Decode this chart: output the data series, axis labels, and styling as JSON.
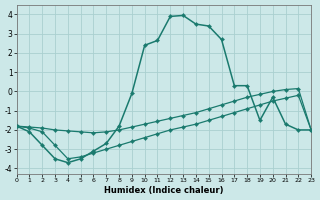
{
  "xlabel": "Humidex (Indice chaleur)",
  "bg_color": "#cce8e8",
  "grid_color": "#aad0d0",
  "line_color": "#1a7a6e",
  "xlim": [
    0,
    23
  ],
  "ylim": [
    -4.3,
    4.5
  ],
  "yticks": [
    -4,
    -3,
    -2,
    -1,
    0,
    1,
    2,
    3,
    4
  ],
  "xticks": [
    0,
    1,
    2,
    3,
    4,
    5,
    6,
    7,
    8,
    9,
    10,
    11,
    12,
    13,
    14,
    15,
    16,
    17,
    18,
    19,
    20,
    21,
    22,
    23
  ],
  "line1_x": [
    0,
    1,
    2,
    3,
    4,
    5,
    6,
    7,
    8,
    9,
    10,
    11,
    12,
    13,
    14,
    15,
    16,
    17,
    18,
    19,
    20,
    21,
    22,
    23
  ],
  "line1_y": [
    -1.8,
    -2.1,
    -2.8,
    -3.5,
    -3.7,
    -3.5,
    -3.1,
    -2.7,
    -1.8,
    -0.1,
    2.4,
    2.65,
    3.9,
    3.95,
    3.5,
    3.4,
    2.7,
    0.3,
    0.3,
    -1.5,
    -0.3,
    -1.7,
    -2.0,
    -2.0
  ],
  "line2_x": [
    0,
    1,
    2,
    3,
    4,
    5,
    6,
    7,
    8,
    9,
    10,
    11,
    12,
    13,
    14,
    15,
    16,
    17,
    18,
    19,
    20,
    21,
    22,
    23
  ],
  "line2_y": [
    -1.8,
    -1.85,
    -1.9,
    -2.0,
    -2.05,
    -2.1,
    -2.15,
    -2.1,
    -2.0,
    -1.85,
    -1.7,
    -1.55,
    -1.4,
    -1.25,
    -1.1,
    -0.9,
    -0.7,
    -0.5,
    -0.3,
    -0.15,
    0.0,
    0.1,
    0.15,
    -2.0
  ],
  "line3_x": [
    0,
    1,
    2,
    3,
    4,
    5,
    6,
    7,
    8,
    9,
    10,
    11,
    12,
    13,
    14,
    15,
    16,
    17,
    18,
    19,
    20,
    21,
    22,
    23
  ],
  "line3_y": [
    -1.8,
    -1.9,
    -2.1,
    -2.8,
    -3.5,
    -3.4,
    -3.2,
    -3.0,
    -2.8,
    -2.6,
    -2.4,
    -2.2,
    -2.0,
    -1.85,
    -1.7,
    -1.5,
    -1.3,
    -1.1,
    -0.9,
    -0.7,
    -0.5,
    -0.35,
    -0.2,
    -2.0
  ]
}
